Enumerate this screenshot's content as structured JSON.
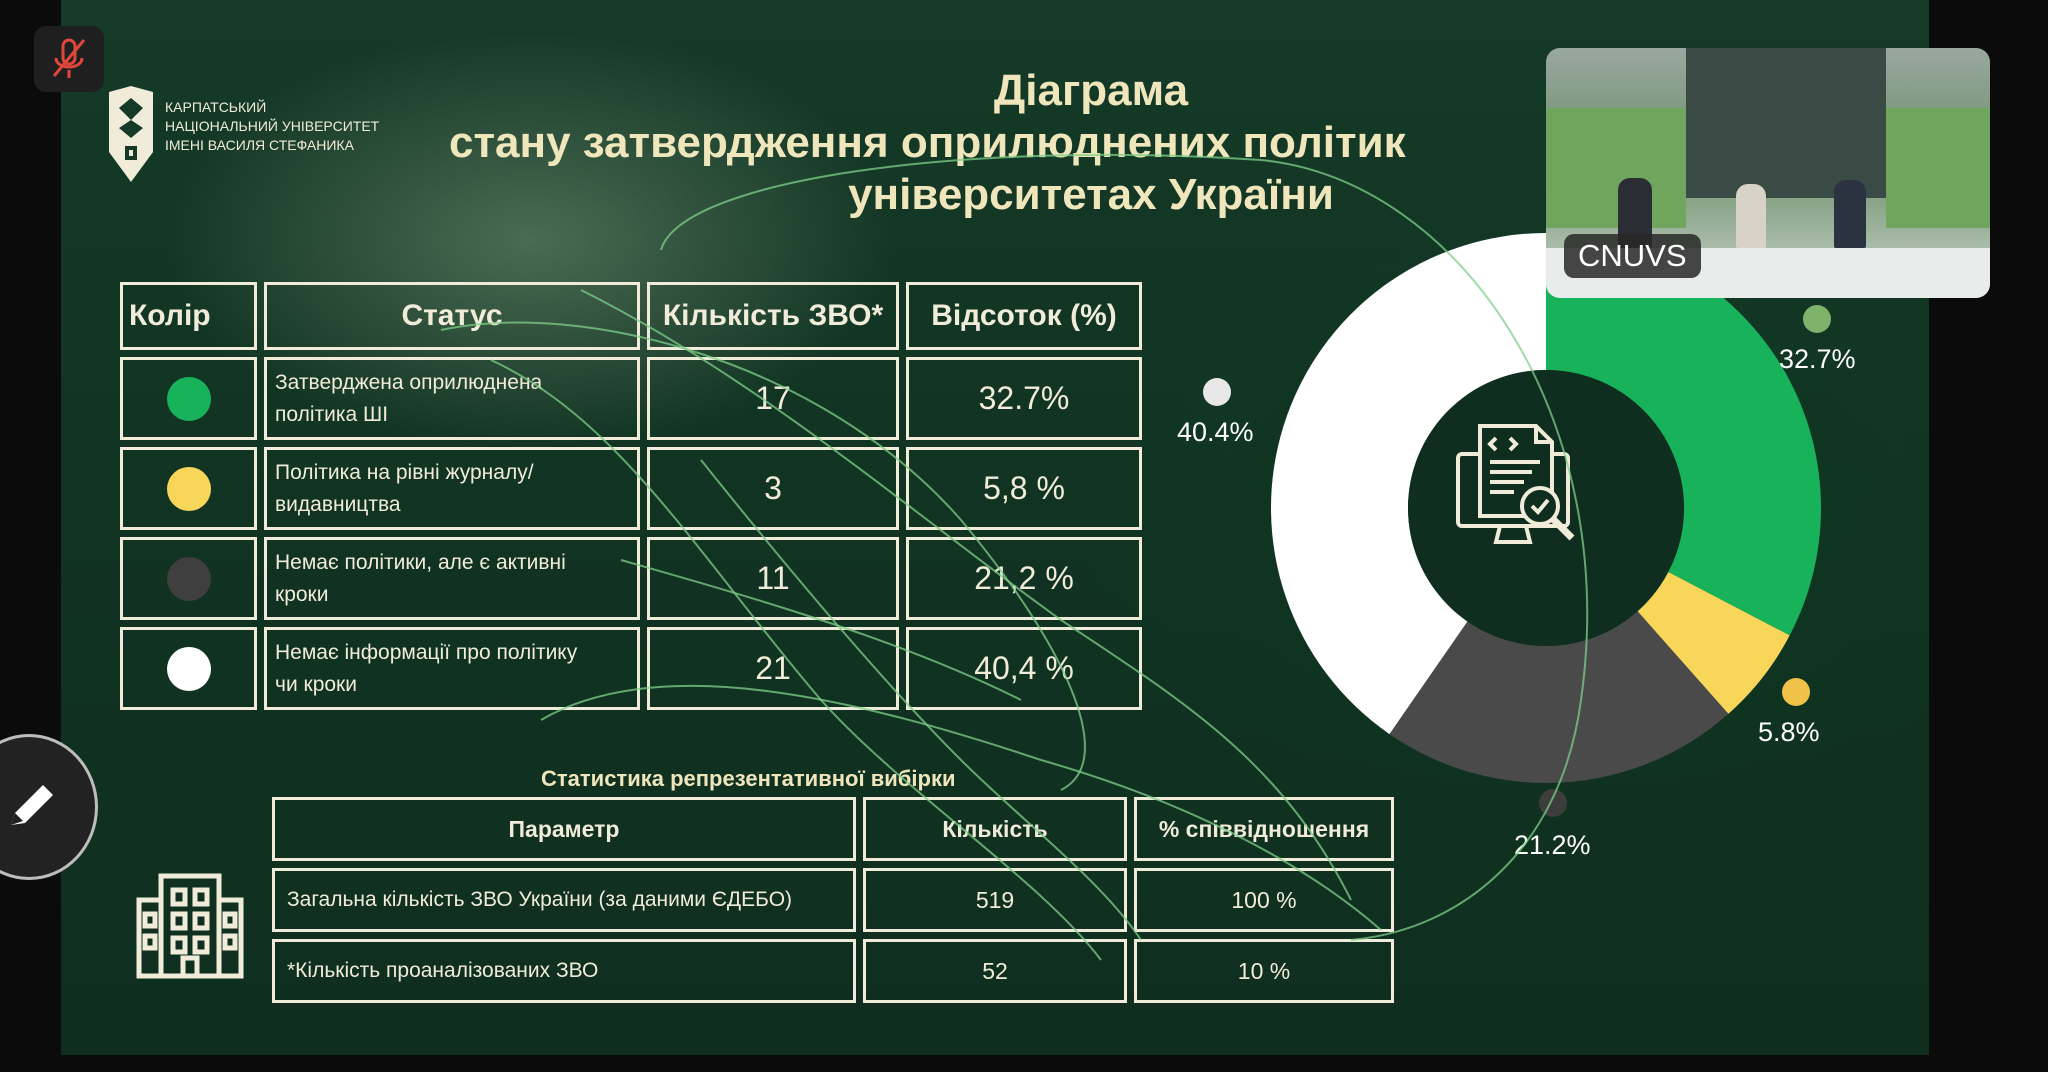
{
  "overlay": {
    "mic_label": "",
    "camera_label": "CNUVS"
  },
  "slide": {
    "logo_text": [
      "КАРПАТСЬКИЙ",
      "НАЦІОНАЛЬНИЙ УНІВЕРСИТЕТ",
      "ІМЕНІ ВАСИЛЯ СТЕФАНИКА"
    ],
    "title_line1": "Діаграма",
    "title_line2": "стану затвердження оприлюднених політик",
    "title_line3": "університетах України",
    "status_table": {
      "headers": [
        "Колір",
        "Статус",
        "Кількість ЗВО*",
        "Відсоток (%)"
      ],
      "rows": [
        {
          "color": "#18b25a",
          "status_line1": "Затверджена оприлюднена",
          "status_line2": "політика ШІ",
          "count": "17",
          "percent": "32.7%"
        },
        {
          "color": "#f7d65a",
          "status_line1": "Політика на рівні журналу/",
          "status_line2": "видавництва",
          "count": "3",
          "percent": "5,8 %"
        },
        {
          "color": "#3f3f3f",
          "status_line1": "Немає політики, але є активні",
          "status_line2": "кроки",
          "count": "11",
          "percent": "21,2 %"
        },
        {
          "color": "#ffffff",
          "status_line1": "Немає інформації про політику",
          "status_line2": "чи кроки",
          "count": "21",
          "percent": "40,4 %"
        }
      ]
    },
    "stats_title": "Статистика репрезентативної вибірки",
    "stats_table": {
      "headers": [
        "Параметр",
        "Кількість",
        "% співвідношення"
      ],
      "rows": [
        {
          "param": "Загальна кількість ЗВО України (за даними ЄДЕБО)",
          "count": "519",
          "ratio": "100 %"
        },
        {
          "param": "*Кількість проаналізованих ЗВО",
          "count": "52",
          "ratio": "10 %"
        }
      ]
    },
    "icons": [
      "building-icon",
      "document-code-search-icon",
      "pencil-icon",
      "mic-muted-icon"
    ]
  },
  "chart_data": {
    "type": "pie",
    "categories": [
      "Затверджена оприлюднена політика ШІ",
      "Політика на рівні журналу/видавництва",
      "Немає політики, але є активні кроки",
      "Немає інформації про політику чи кроки"
    ],
    "values": [
      32.7,
      5.8,
      21.2,
      40.4
    ],
    "labels": [
      "32.7%",
      "5.8%",
      "21.2%",
      "40.4%"
    ],
    "colors": [
      "#18b25a",
      "#f7d65a",
      "#4a4a4a",
      "#ffffff"
    ]
  }
}
